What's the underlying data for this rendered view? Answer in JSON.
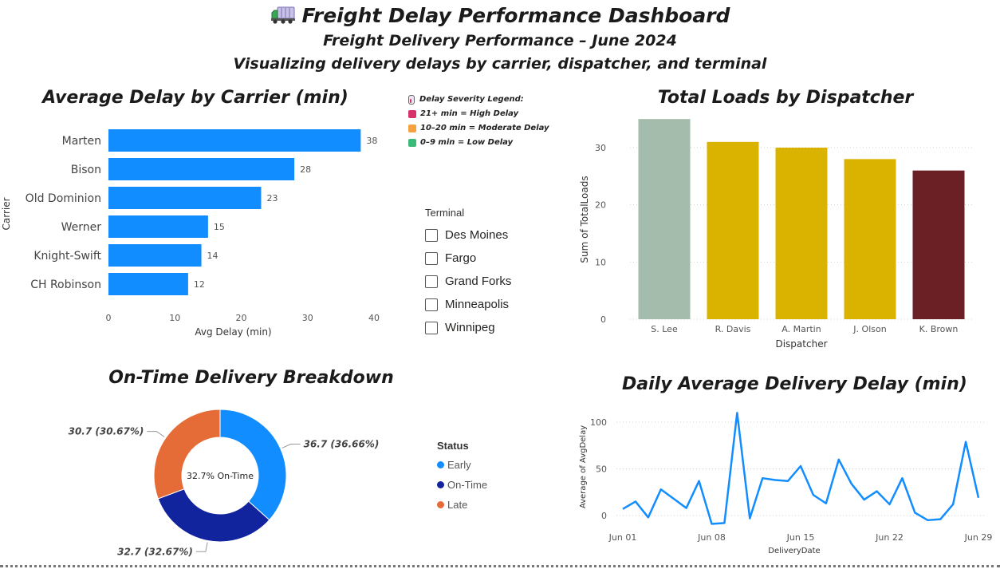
{
  "header": {
    "icon": "truck-icon",
    "title": "Freight Delay Performance Dashboard",
    "subtitle": "Freight Delivery Performance – June 2024",
    "description": "Visualizing delivery delays by carrier, dispatcher, and terminal"
  },
  "severity_legend": {
    "title": "Delay Severity Legend:",
    "items": [
      {
        "label": "21+ min = High Delay",
        "color": "#d6336c"
      },
      {
        "label": "10–20 min = Moderate Delay",
        "color": "#f4a340"
      },
      {
        "label": "0–9 min = Low Delay",
        "color": "#3cba78"
      }
    ]
  },
  "terminal_slicer": {
    "title": "Terminal",
    "options": [
      "Des Moines",
      "Fargo",
      "Grand Forks",
      "Minneapolis",
      "Winnipeg"
    ]
  },
  "status_legend": {
    "title": "Status",
    "items": [
      {
        "label": "Early",
        "color": "#118dff"
      },
      {
        "label": "On-Time",
        "color": "#12239e"
      },
      {
        "label": "Late",
        "color": "#e66c37"
      }
    ]
  },
  "chart_data": [
    {
      "type": "bar",
      "orientation": "horizontal",
      "title": "Average Delay by Carrier (min)",
      "xlabel": "Avg Delay (min)",
      "ylabel": "Carrier",
      "categories": [
        "Marten",
        "Bison",
        "Old Dominion",
        "Werner",
        "Knight-Swift",
        "CH Robinson"
      ],
      "values": [
        38,
        28,
        23,
        15,
        14,
        12
      ],
      "xlim": [
        0,
        40
      ],
      "xticks": [
        "0",
        "10",
        "20",
        "30",
        "40"
      ],
      "color": "#118dff",
      "data_labels": true
    },
    {
      "type": "bar",
      "title": "Total Loads by Dispatcher",
      "xlabel": "Dispatcher",
      "ylabel": "Sum of TotalLoads",
      "categories": [
        "S. Lee",
        "R. Davis",
        "A. Martin",
        "J. Olson",
        "K. Brown"
      ],
      "values": [
        35,
        31,
        30,
        28,
        26
      ],
      "colors": [
        "#a3bcab",
        "#d9b300",
        "#d9b300",
        "#d9b300",
        "#6b2026"
      ],
      "ylim": [
        0,
        36
      ],
      "yticks": [
        "0",
        "10",
        "20",
        "30"
      ],
      "grid": true
    },
    {
      "type": "pie",
      "subtype": "donut",
      "title": "On-Time Delivery Breakdown",
      "center_label": "32.7% On-Time",
      "slices": [
        {
          "name": "Early",
          "value": 36.7,
          "label": "36.7 (36.66%)",
          "color": "#118dff"
        },
        {
          "name": "On-Time",
          "value": 32.7,
          "label": "32.7 (32.67%)",
          "color": "#12239e"
        },
        {
          "name": "Late",
          "value": 30.7,
          "label": "30.7 (30.67%)",
          "color": "#e66c37"
        }
      ]
    },
    {
      "type": "line",
      "title": "Daily Average Delivery Delay (min)",
      "xlabel": "DeliveryDate",
      "ylabel": "Average of AvgDelay",
      "x": [
        "Jun 01",
        "Jun 02",
        "Jun 03",
        "Jun 04",
        "Jun 05",
        "Jun 06",
        "Jun 07",
        "Jun 08",
        "Jun 09",
        "Jun 10",
        "Jun 11",
        "Jun 12",
        "Jun 13",
        "Jun 14",
        "Jun 15",
        "Jun 16",
        "Jun 17",
        "Jun 18",
        "Jun 19",
        "Jun 20",
        "Jun 21",
        "Jun 22",
        "Jun 23",
        "Jun 24",
        "Jun 25",
        "Jun 26",
        "Jun 27",
        "Jun 28",
        "Jun 29"
      ],
      "values": [
        7,
        15,
        -2,
        28,
        18,
        8,
        37,
        -9,
        -8,
        110,
        -3,
        40,
        38,
        37,
        53,
        22,
        13,
        60,
        34,
        17,
        26,
        12,
        40,
        3,
        -5,
        -4,
        12,
        79,
        19
      ],
      "xticks": [
        "Jun 01",
        "Jun 08",
        "Jun 15",
        "Jun 22",
        "Jun 29"
      ],
      "yticks": [
        "0",
        "50",
        "100"
      ],
      "ylim": [
        -12,
        118
      ],
      "color": "#118dff",
      "grid": true
    }
  ]
}
